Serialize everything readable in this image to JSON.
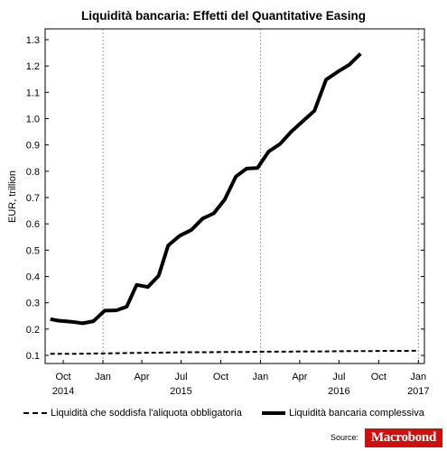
{
  "chart_data": {
    "type": "line",
    "title": "Liquidità bancaria: Effetti del Quantitative Easing",
    "ylabel": "EUR, trillion",
    "ylim": [
      0.1,
      1.3
    ],
    "yticks": [
      "0.1",
      "0.2",
      "0.3",
      "0.4",
      "0.5",
      "0.6",
      "0.7",
      "0.8",
      "0.9",
      "1.0",
      "1.1",
      "1.2",
      "1.3"
    ],
    "xlim": [
      "2014-08-20",
      "2017-01-15"
    ],
    "x_month_labels": [
      {
        "date": "2014-10-01",
        "label": "Oct"
      },
      {
        "date": "2015-01-01",
        "label": "Jan"
      },
      {
        "date": "2015-04-01",
        "label": "Apr"
      },
      {
        "date": "2015-07-01",
        "label": "Jul"
      },
      {
        "date": "2015-10-01",
        "label": "Oct"
      },
      {
        "date": "2016-01-01",
        "label": "Jan"
      },
      {
        "date": "2016-04-01",
        "label": "Apr"
      },
      {
        "date": "2016-07-01",
        "label": "Jul"
      },
      {
        "date": "2016-10-01",
        "label": "Oct"
      },
      {
        "date": "2017-01-01",
        "label": "Jan"
      }
    ],
    "x_year_labels": [
      {
        "date": "2014-10-01",
        "label": "2014"
      },
      {
        "date": "2015-07-01",
        "label": "2015"
      },
      {
        "date": "2016-07-01",
        "label": "2016"
      },
      {
        "date": "2017-01-01",
        "label": "2017"
      }
    ],
    "vertical_gridlines": [
      "2015-01-01",
      "2016-01-01",
      "2017-01-01"
    ],
    "legend_position": "bottom",
    "series": [
      {
        "name": "Liquidità che soddisfa l'aliquota obbligatoria",
        "style": "dashed",
        "points": [
          [
            "2014-09-01",
            0.106
          ],
          [
            "2014-10-15",
            0.106
          ],
          [
            "2014-12-01",
            0.107
          ],
          [
            "2015-01-15",
            0.108
          ],
          [
            "2015-03-01",
            0.109
          ],
          [
            "2015-04-15",
            0.11
          ],
          [
            "2015-06-01",
            0.111
          ],
          [
            "2015-07-15",
            0.112
          ],
          [
            "2015-09-01",
            0.112
          ],
          [
            "2015-10-15",
            0.113
          ],
          [
            "2015-12-01",
            0.113
          ],
          [
            "2016-01-15",
            0.114
          ],
          [
            "2016-03-01",
            0.114
          ],
          [
            "2016-04-15",
            0.115
          ],
          [
            "2016-06-01",
            0.115
          ],
          [
            "2016-07-15",
            0.116
          ],
          [
            "2016-09-01",
            0.116
          ],
          [
            "2016-10-15",
            0.117
          ],
          [
            "2016-12-01",
            0.117
          ],
          [
            "2016-12-31",
            0.118
          ]
        ]
      },
      {
        "name": "Liquidità bancaria complessiva",
        "style": "solid",
        "points": [
          [
            "2014-09-01",
            0.238
          ],
          [
            "2014-09-20",
            0.232
          ],
          [
            "2014-10-20",
            0.228
          ],
          [
            "2014-11-15",
            0.222
          ],
          [
            "2014-12-10",
            0.23
          ],
          [
            "2015-01-05",
            0.27
          ],
          [
            "2015-02-01",
            0.271
          ],
          [
            "2015-02-25",
            0.285
          ],
          [
            "2015-03-20",
            0.368
          ],
          [
            "2015-04-15",
            0.36
          ],
          [
            "2015-05-10",
            0.403
          ],
          [
            "2015-06-01",
            0.518
          ],
          [
            "2015-06-28",
            0.555
          ],
          [
            "2015-07-25",
            0.577
          ],
          [
            "2015-08-20",
            0.62
          ],
          [
            "2015-09-15",
            0.64
          ],
          [
            "2015-10-10",
            0.692
          ],
          [
            "2015-11-05",
            0.78
          ],
          [
            "2015-11-30",
            0.81
          ],
          [
            "2015-12-25",
            0.812
          ],
          [
            "2016-01-20",
            0.875
          ],
          [
            "2016-02-15",
            0.903
          ],
          [
            "2016-03-12",
            0.95
          ],
          [
            "2016-04-08",
            0.99
          ],
          [
            "2016-05-05",
            1.03
          ],
          [
            "2016-06-01",
            1.148
          ],
          [
            "2016-06-28",
            1.178
          ],
          [
            "2016-07-25",
            1.205
          ],
          [
            "2016-08-20",
            1.247
          ]
        ]
      }
    ]
  },
  "source": {
    "label": "Source:",
    "logo_text": "Macrobond"
  }
}
